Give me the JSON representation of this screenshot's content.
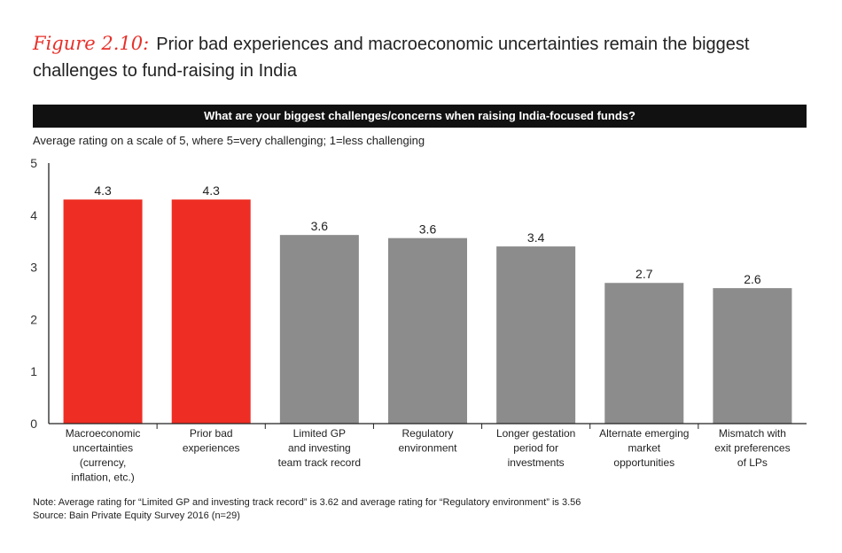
{
  "figure": {
    "label": "Figure 2.10:",
    "title": "Prior bad experiences and macroeconomic uncertainties remain the biggest challenges to fund-raising in India"
  },
  "banner": "What are your biggest challenges/concerns when raising India-focused funds?",
  "subtitle": "Average rating on a scale of 5, where 5=very challenging; 1=less challenging",
  "notes": {
    "note": "Note: Average rating for “Limited GP and investing track record” is 3.62 and average rating for “Regulatory environment” is 3.56",
    "source": "Source: Bain Private Equity Survey 2016 (n=29)"
  },
  "colors": {
    "highlight": "#ee2e24",
    "default": "#8c8c8c"
  },
  "chart_data": {
    "type": "bar",
    "title": "What are your biggest challenges/concerns when raising India-focused funds?",
    "ylabel": "Average rating on a scale of 5, where 5=very challenging; 1=less challenging",
    "ylim": [
      0,
      5
    ],
    "yticks": [
      "0",
      "1",
      "2",
      "3",
      "4",
      "5"
    ],
    "categories": [
      [
        "Macroeconomic",
        "uncertainties",
        "(currency,",
        "inflation, etc.)"
      ],
      [
        "Prior bad",
        "experiences"
      ],
      [
        "Limited GP",
        "and investing",
        "team track record"
      ],
      [
        "Regulatory",
        "environment"
      ],
      [
        "Longer gestation",
        "period for",
        "investments"
      ],
      [
        "Alternate emerging",
        "market",
        "opportunities"
      ],
      [
        "Mismatch with",
        "exit preferences",
        "of LPs"
      ]
    ],
    "values": [
      4.3,
      4.3,
      3.62,
      3.56,
      3.4,
      2.7,
      2.6
    ],
    "value_labels": [
      "4.3",
      "4.3",
      "3.6",
      "3.6",
      "3.4",
      "2.7",
      "2.6"
    ],
    "highlight": [
      true,
      true,
      false,
      false,
      false,
      false,
      false
    ],
    "grid": false
  }
}
